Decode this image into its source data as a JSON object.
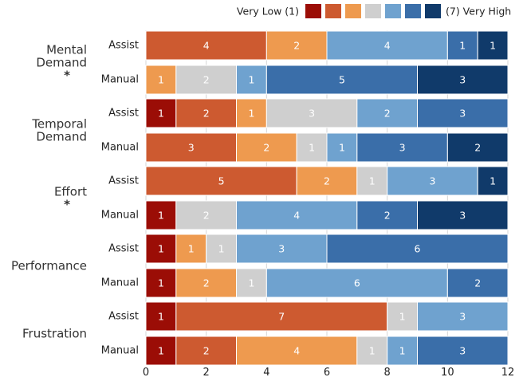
{
  "chart_data": {
    "type": "bar",
    "orientation": "horizontal",
    "stacked": true,
    "xlim": [
      0,
      12
    ],
    "xticks": [
      0,
      2,
      4,
      6,
      8,
      10,
      12
    ],
    "grid": "vertical",
    "legend": {
      "placement": "top-right",
      "low_label": "Very Low (1)",
      "high_label": "(7) Very High",
      "colors": [
        "#9b0d06",
        "#cd5a30",
        "#ee9a4f",
        "#cfcfcf",
        "#6fa2cf",
        "#3a6ea9",
        "#103a6a"
      ]
    },
    "scale_levels": [
      1,
      2,
      3,
      4,
      5,
      6,
      7
    ],
    "groups": [
      {
        "name_lines": [
          "Mental",
          "Demand"
        ],
        "significant": "*",
        "bars": [
          {
            "condition": "Assist",
            "counts": [
              0,
              4,
              2,
              0,
              4,
              1,
              1
            ]
          },
          {
            "condition": "Manual",
            "counts": [
              0,
              0,
              1,
              2,
              1,
              5,
              3
            ]
          }
        ]
      },
      {
        "name_lines": [
          "Temporal",
          "Demand"
        ],
        "significant": "",
        "bars": [
          {
            "condition": "Assist",
            "counts": [
              1,
              2,
              1,
              3,
              2,
              3,
              0
            ]
          },
          {
            "condition": "Manual",
            "counts": [
              0,
              3,
              2,
              1,
              1,
              3,
              2
            ]
          }
        ]
      },
      {
        "name_lines": [
          "Effort"
        ],
        "significant": "*",
        "bars": [
          {
            "condition": "Assist",
            "counts": [
              0,
              5,
              2,
              1,
              3,
              0,
              1
            ]
          },
          {
            "condition": "Manual",
            "counts": [
              1,
              0,
              0,
              2,
              4,
              2,
              3
            ]
          }
        ]
      },
      {
        "name_lines": [
          "Performance"
        ],
        "significant": "",
        "bars": [
          {
            "condition": "Assist",
            "counts": [
              1,
              0,
              1,
              1,
              3,
              6,
              0
            ]
          },
          {
            "condition": "Manual",
            "counts": [
              1,
              0,
              2,
              1,
              6,
              2,
              0
            ]
          }
        ]
      },
      {
        "name_lines": [
          "Frustration"
        ],
        "significant": "",
        "bars": [
          {
            "condition": "Assist",
            "counts": [
              1,
              7,
              0,
              1,
              3,
              0,
              0
            ]
          },
          {
            "condition": "Manual",
            "counts": [
              1,
              2,
              4,
              1,
              1,
              3,
              0
            ]
          }
        ]
      }
    ]
  }
}
